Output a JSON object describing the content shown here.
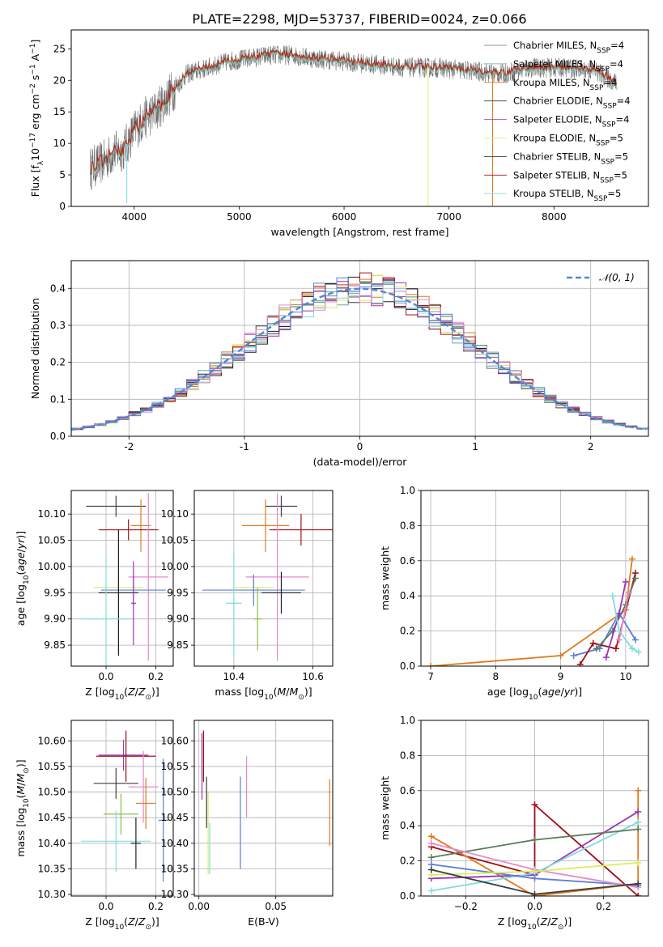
{
  "title": "PLATE=2298, MJD=53737, FIBERID=0024, z=0.066",
  "colors": {
    "chabrier_miles": "#5a7d5a",
    "salpeter_miles": "#66a6ad",
    "kroupa_miles": "#e07a1f",
    "chabrier_elodie": "#3d3d3d",
    "salpeter_elodie": "#9b36b8",
    "kroupa_elodie": "#d9ef5f",
    "chabrier_stelib": "#202020",
    "salpeter_stelib": "#a01018",
    "kroupa_stelib": "#7fdddf",
    "extra_blue": "#5b7fd6",
    "extra_pink": "#e58ac8",
    "extra_green": "#8fbf3f",
    "gaussian": "#4f88d6"
  },
  "chart_data": [
    {
      "id": "spectrum",
      "type": "line",
      "xlabel": "wavelength [Angstrom, rest frame]",
      "ylabel": "Flux [f_λ 10^-17 erg cm^-2 s^-1 A^-1]",
      "xlim": [
        3400,
        8900
      ],
      "ylim": [
        0,
        28
      ],
      "xticks": [
        4000,
        5000,
        6000,
        7000,
        8000
      ],
      "yticks": [
        0,
        5,
        10,
        15,
        20,
        25
      ],
      "grid": false,
      "legend_position": "top-right",
      "legend": [
        {
          "label": "Chabrier MILES, N",
          "sub": "SSP",
          "tail": "=4",
          "color": "chabrier_miles"
        },
        {
          "label": "Salpeter MILES, N",
          "sub": "SSP",
          "tail": "=4",
          "color": "salpeter_miles"
        },
        {
          "label": "Kroupa MILES, N",
          "sub": "SSP",
          "tail": "=4",
          "color": "kroupa_miles"
        },
        {
          "label": "Chabrier ELODIE, N",
          "sub": "SSP",
          "tail": "=4",
          "color": "chabrier_elodie"
        },
        {
          "label": "Salpeter ELODIE, N",
          "sub": "SSP",
          "tail": "=4",
          "color": "salpeter_elodie"
        },
        {
          "label": "Kroupa ELODIE, N",
          "sub": "SSP",
          "tail": "=5",
          "color": "kroupa_elodie"
        },
        {
          "label": "Chabrier STELIB, N",
          "sub": "SSP",
          "tail": "=5",
          "color": "chabrier_stelib"
        },
        {
          "label": "Salpeter STELIB, N",
          "sub": "SSP",
          "tail": "=5",
          "color": "salpeter_stelib"
        },
        {
          "label": "Kroupa STELIB, N",
          "sub": "SSP",
          "tail": "=5",
          "color": "kroupa_stelib"
        }
      ],
      "continuum": {
        "x": [
          3580,
          3700,
          3800,
          3900,
          4000,
          4100,
          4200,
          4300,
          4400,
          4500,
          4700,
          4900,
          5100,
          5300,
          5500,
          5700,
          6000,
          6300,
          6600,
          6900,
          7200,
          7500,
          7800,
          8100,
          8400,
          8600
        ],
        "y": [
          6,
          7,
          8.5,
          9,
          12,
          14,
          15,
          17,
          19,
          21,
          22,
          23,
          23.5,
          24,
          24,
          23.5,
          23,
          22.5,
          22,
          22,
          21.5,
          21,
          22,
          22,
          21.5,
          19.5
        ]
      },
      "spikes": [
        {
          "x": 6800,
          "y": 0.1,
          "color": "kroupa_elodie"
        },
        {
          "x": 7415,
          "y": 0.1,
          "color": "kroupa_miles"
        },
        {
          "x": 3930,
          "y": 0.5,
          "color": "kroupa_stelib"
        }
      ]
    },
    {
      "id": "residuals",
      "type": "bar",
      "xlabel": "(data-model)/error",
      "ylabel": "Normed distribution",
      "xlim": [
        -2.5,
        2.5
      ],
      "ylim": [
        0,
        0.475
      ],
      "xticks": [
        -2,
        -1,
        0,
        1,
        2
      ],
      "yticks": [
        0.0,
        0.1,
        0.2,
        0.3,
        0.4
      ],
      "grid": true,
      "legend_position": "top-right",
      "legend": [
        {
          "label": "𝒩(0, 1)",
          "style": "dashed",
          "color": "gaussian"
        }
      ],
      "bin_width": 0.1,
      "histogram_colors": [
        "chabrier_miles",
        "salpeter_miles",
        "kroupa_miles",
        "chabrier_elodie",
        "salpeter_elodie",
        "kroupa_elodie",
        "chabrier_stelib",
        "salpeter_stelib",
        "kroupa_stelib",
        "extra_pink",
        "extra_blue"
      ],
      "gaussian": {
        "mean": 0,
        "sigma": 1
      }
    },
    {
      "id": "age_vs_z",
      "type": "scatter",
      "xlabel": "Z [log10(Z/Z⊙)]",
      "ylabel": "age [log10(age/yr)]",
      "xlim": [
        -0.14,
        0.27
      ],
      "ylim": [
        9.81,
        10.145
      ],
      "xticks": [
        0.0,
        0.2
      ],
      "yticks": [
        9.85,
        9.9,
        9.95,
        10.0,
        10.05,
        10.1
      ],
      "grid": true,
      "points": [
        {
          "x": 0.04,
          "y": 10.115,
          "xerr": 0.12,
          "yerr": 0.02,
          "color": "chabrier_elodie"
        },
        {
          "x": 0.14,
          "y": 10.078,
          "xerr": 0.04,
          "yerr": 0.05,
          "color": "kroupa_miles"
        },
        {
          "x": 0.09,
          "y": 10.07,
          "xerr": 0.12,
          "yerr": 0.02,
          "color": "salpeter_stelib"
        },
        {
          "x": 0.17,
          "y": 9.98,
          "xerr": 0.08,
          "yerr": 0.16,
          "color": "extra_pink"
        },
        {
          "x": 0.05,
          "y": 9.96,
          "xerr": 0.1,
          "yerr": 0.02,
          "color": "kroupa_elodie"
        },
        {
          "x": 0.11,
          "y": 9.955,
          "xerr": 0.13,
          "yerr": 0.03,
          "color": "extra_blue"
        },
        {
          "x": 0.05,
          "y": 9.95,
          "xerr": 0.08,
          "yerr": 0.12,
          "color": "chabrier_stelib"
        },
        {
          "x": 0.0,
          "y": 9.9,
          "xerr": 0.1,
          "yerr": 0.12,
          "color": "kroupa_stelib"
        },
        {
          "x": 0.11,
          "y": 9.93,
          "xerr": 0.01,
          "yerr": 0.08,
          "color": "salpeter_elodie"
        }
      ]
    },
    {
      "id": "age_vs_mass",
      "type": "scatter",
      "xlabel": "mass [log10(M/M⊙)]",
      "ylabel": "",
      "xlim": [
        10.3,
        10.65
      ],
      "ylim": [
        9.81,
        10.145
      ],
      "xticks": [
        10.4,
        10.6
      ],
      "yticks": [
        9.85,
        9.9,
        9.95,
        10.0,
        10.05,
        10.1
      ],
      "grid": true,
      "points": [
        {
          "x": 10.52,
          "y": 10.115,
          "xerr": 0.04,
          "yerr": 0.02,
          "color": "chabrier_elodie"
        },
        {
          "x": 10.48,
          "y": 10.078,
          "xerr": 0.06,
          "yerr": 0.05,
          "color": "kroupa_miles"
        },
        {
          "x": 10.57,
          "y": 10.07,
          "xerr": 0.08,
          "yerr": 0.03,
          "color": "salpeter_stelib"
        },
        {
          "x": 10.51,
          "y": 9.98,
          "xerr": 0.08,
          "yerr": 0.16,
          "color": "extra_pink"
        },
        {
          "x": 10.45,
          "y": 9.96,
          "xerr": 0.05,
          "yerr": 0.02,
          "color": "kroupa_elodie"
        },
        {
          "x": 10.45,
          "y": 9.955,
          "xerr": 0.13,
          "yerr": 0.03,
          "color": "extra_blue"
        },
        {
          "x": 10.52,
          "y": 9.95,
          "xerr": 0.05,
          "yerr": 0.04,
          "color": "chabrier_stelib"
        },
        {
          "x": 10.4,
          "y": 9.93,
          "xerr": 0.02,
          "yerr": 0.1,
          "color": "kroupa_stelib"
        },
        {
          "x": 10.46,
          "y": 9.9,
          "xerr": 0.01,
          "yerr": 0.06,
          "color": "extra_green"
        }
      ]
    },
    {
      "id": "weight_vs_age",
      "type": "line",
      "xlabel": "age [log10(age/yr)]",
      "ylabel": "mass weight",
      "xlim": [
        6.85,
        10.35
      ],
      "ylim": [
        0,
        1.0
      ],
      "xticks": [
        7,
        8,
        9,
        10
      ],
      "yticks": [
        0.0,
        0.2,
        0.4,
        0.6,
        0.8,
        1.0
      ],
      "grid": true,
      "series": [
        {
          "color": "kroupa_miles",
          "x": [
            7.0,
            9.0,
            10.0,
            10.1
          ],
          "y": [
            0.0,
            0.06,
            0.32,
            0.61
          ]
        },
        {
          "color": "extra_blue",
          "x": [
            9.2,
            9.6,
            9.9,
            10.15
          ],
          "y": [
            0.06,
            0.1,
            0.3,
            0.15
          ]
        },
        {
          "color": "salpeter_stelib",
          "x": [
            9.3,
            9.5,
            9.85,
            10.15
          ],
          "y": [
            0.01,
            0.13,
            0.1,
            0.53
          ]
        },
        {
          "color": "chabrier_miles",
          "x": [
            9.55,
            9.8,
            10.0,
            10.15
          ],
          "y": [
            0.1,
            0.2,
            0.35,
            0.5
          ]
        },
        {
          "color": "salpeter_elodie",
          "x": [
            9.7,
            9.9,
            10.0
          ],
          "y": [
            0.05,
            0.3,
            0.48
          ]
        },
        {
          "color": "kroupa_stelib",
          "x": [
            9.8,
            9.9,
            10.1,
            10.2
          ],
          "y": [
            0.4,
            0.2,
            0.1,
            0.08
          ]
        },
        {
          "color": "extra_pink",
          "x": [
            9.9,
            10.05
          ],
          "y": [
            0.15,
            0.42
          ]
        }
      ]
    },
    {
      "id": "mass_vs_z",
      "type": "scatter",
      "xlabel": "Z [log10(Z/Z⊙)]",
      "ylabel": "mass [log10(M/M⊙)]",
      "xlim": [
        -0.14,
        0.27
      ],
      "ylim": [
        10.297,
        10.64
      ],
      "xticks": [
        0.0,
        0.2
      ],
      "yticks": [
        10.3,
        10.35,
        10.4,
        10.45,
        10.5,
        10.55,
        10.6
      ],
      "grid": true,
      "points": [
        {
          "x": 0.07,
          "y": 10.572,
          "xerr": 0.1,
          "yerr": 0.03,
          "color": "salpeter_elodie"
        },
        {
          "x": 0.08,
          "y": 10.57,
          "xerr": 0.12,
          "yerr": 0.05,
          "color": "salpeter_stelib"
        },
        {
          "x": 0.04,
          "y": 10.517,
          "xerr": 0.09,
          "yerr": 0.03,
          "color": "chabrier_elodie"
        },
        {
          "x": 0.15,
          "y": 10.51,
          "xerr": 0.06,
          "yerr": 0.07,
          "color": "extra_pink"
        },
        {
          "x": 0.16,
          "y": 10.478,
          "xerr": 0.04,
          "yerr": 0.05,
          "color": "kroupa_miles"
        },
        {
          "x": 0.06,
          "y": 10.457,
          "xerr": 0.07,
          "yerr": 0.04,
          "color": "extra_green"
        },
        {
          "x": 0.23,
          "y": 10.445,
          "xerr": 0.02,
          "yerr": 0.12,
          "color": "extra_blue"
        },
        {
          "x": 0.04,
          "y": 10.404,
          "xerr": 0.14,
          "yerr": 0.06,
          "color": "kroupa_stelib"
        },
        {
          "x": 0.12,
          "y": 10.4,
          "xerr": 0.02,
          "yerr": 0.05,
          "color": "chabrier_stelib"
        }
      ]
    },
    {
      "id": "mass_vs_ebv",
      "type": "scatter",
      "xlabel": "E(B-V)",
      "ylabel": "",
      "xlim": [
        -0.003,
        0.087
      ],
      "ylim": [
        10.297,
        10.64
      ],
      "xticks": [
        0.0,
        0.05
      ],
      "yticks": [
        10.3,
        10.35,
        10.4,
        10.45,
        10.5,
        10.55,
        10.6
      ],
      "grid": true,
      "points": [
        {
          "x": 0.002,
          "y": 10.55,
          "yerr": 0.065,
          "color": "salpeter_elodie"
        },
        {
          "x": 0.003,
          "y": 10.57,
          "yerr": 0.05,
          "color": "salpeter_stelib"
        },
        {
          "x": 0.005,
          "y": 10.48,
          "yerr": 0.05,
          "color": "chabrier_elodie"
        },
        {
          "x": 0.031,
          "y": 10.51,
          "yerr": 0.06,
          "color": "extra_pink"
        },
        {
          "x": 0.085,
          "y": 10.46,
          "yerr": 0.065,
          "color": "kroupa_miles"
        },
        {
          "x": 0.027,
          "y": 10.44,
          "yerr": 0.09,
          "color": "extra_blue"
        },
        {
          "x": 0.006,
          "y": 10.42,
          "yerr": 0.08,
          "color": "kroupa_elodie"
        },
        {
          "x": 0.007,
          "y": 10.39,
          "yerr": 0.05,
          "color": "kroupa_stelib"
        }
      ]
    },
    {
      "id": "weight_vs_z",
      "type": "line",
      "xlabel": "Z [log10(Z/Z⊙)]",
      "ylabel": "mass weight",
      "xlim": [
        -0.33,
        0.33
      ],
      "ylim": [
        0,
        1.0
      ],
      "xticks": [
        -0.2,
        0.0,
        0.2
      ],
      "yticks": [
        0.0,
        0.2,
        0.4,
        0.6,
        0.8,
        1.0
      ],
      "grid": true,
      "series": [
        {
          "color": "salpeter_stelib",
          "x": [
            -0.3,
            0.0,
            0.0,
            0.3
          ],
          "y": [
            0.28,
            0.12,
            0.52,
            0.0
          ]
        },
        {
          "color": "kroupa_miles",
          "x": [
            -0.3,
            0.0,
            0.3,
            0.3
          ],
          "y": [
            0.34,
            0.0,
            0.07,
            0.6
          ]
        },
        {
          "color": "salpeter_elodie",
          "x": [
            -0.3,
            0.0,
            0.3
          ],
          "y": [
            0.1,
            0.12,
            0.48
          ]
        },
        {
          "color": "kroupa_stelib",
          "x": [
            -0.3,
            0.0,
            0.3
          ],
          "y": [
            0.03,
            0.13,
            0.42
          ]
        },
        {
          "color": "chabrier_miles",
          "x": [
            -0.3,
            0.0,
            0.3
          ],
          "y": [
            0.22,
            0.32,
            0.38
          ]
        },
        {
          "color": "extra_blue",
          "x": [
            -0.3,
            0.0,
            0.3
          ],
          "y": [
            0.18,
            0.1,
            0.06
          ]
        },
        {
          "color": "extra_pink",
          "x": [
            -0.3,
            0.0,
            0.3
          ],
          "y": [
            0.3,
            0.15,
            0.05
          ]
        },
        {
          "color": "kroupa_elodie",
          "x": [
            -0.3,
            0.0,
            0.3
          ],
          "y": [
            0.12,
            0.14,
            0.19
          ]
        },
        {
          "color": "chabrier_elodie",
          "x": [
            -0.3,
            0.0,
            0.3
          ],
          "y": [
            0.15,
            0.01,
            0.07
          ]
        }
      ]
    }
  ]
}
